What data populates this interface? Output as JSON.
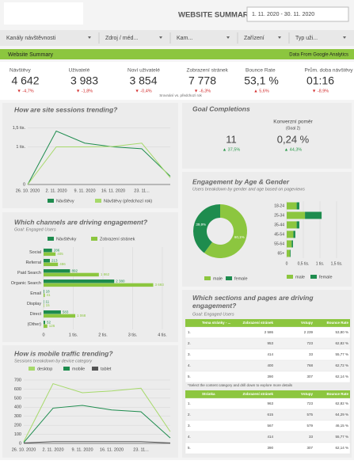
{
  "header": {
    "title": "WEBSITE SUMMARY OVERVIEW",
    "date_range": "1. 11. 2020 - 30. 11. 2020"
  },
  "filters": [
    "Kanály návštěvnosti",
    "Zdroj / méd...",
    "Kam...",
    "Zařízení",
    "Typ uži..."
  ],
  "banner": {
    "left": "Website Summary",
    "right": "Data From Google Analytics"
  },
  "kpis": [
    {
      "label": "Návštěvy",
      "value": "4 642",
      "change": "▼ -4,7%"
    },
    {
      "label": "Uživatelé",
      "value": "3 983",
      "change": "▼ -1,8%"
    },
    {
      "label": "Noví uživatelé",
      "value": "3 854",
      "change": "▼ -0,4%"
    },
    {
      "label": "Zobrazení stránek",
      "value": "7 778",
      "change": "▼ -6,3%"
    },
    {
      "label": "Bounce Rate",
      "value": "53,1 %",
      "change": "▲ 5,6%"
    },
    {
      "label": "Prům. doba návštěvy",
      "value": "01:16",
      "change": "▼ -8,9%"
    }
  ],
  "kpi_note": "Srovnání vs. předchozí rok",
  "goals": {
    "title": "Goal Completions",
    "count": "11",
    "count_change": "▲ 37,5%",
    "rate_label": "Konverzní poměr",
    "rate_sub": "(Goal 2)",
    "rate": "0,24 %",
    "rate_change": "▲ 44,3%"
  },
  "chart_data": [
    {
      "type": "line",
      "title": "How are site sessions trending?",
      "categories": [
        "26. 10. 2020",
        "2. 11. 2020",
        "9. 11. 2020",
        "16. 11. 2020",
        "23. 11...",
        null
      ],
      "ylim": [
        0,
        1600
      ],
      "yticks": [
        0,
        {
          "value": 1000,
          "label": "1 tis."
        },
        {
          "value": 1500,
          "label": "1,5 tis."
        }
      ],
      "series": [
        {
          "name": "Návštěvy",
          "color": "#1e8c4e",
          "values": [
            0,
            1420,
            1100,
            1000,
            950,
            220
          ]
        },
        {
          "name": "Návštěvy (předchozí rok)",
          "color": "#a6d96a",
          "values": [
            0,
            1000,
            1000,
            1010,
            1100,
            180
          ]
        }
      ]
    },
    {
      "type": "hbar",
      "title": "Which channels are driving engagement?",
      "subtitle": "Goal: Engaged Users",
      "categories": [
        "Social",
        "Referral",
        "Paid Search",
        "Organic Search",
        "Email",
        "Display",
        "Direct",
        "(Other)"
      ],
      "xlim": [
        0,
        4000
      ],
      "xticks": [
        0,
        {
          "value": 1000,
          "label": "1 tis."
        },
        {
          "value": 2000,
          "label": "2 tis."
        },
        {
          "value": 3000,
          "label": "3 tis."
        },
        {
          "value": 4000,
          "label": "4 tis."
        }
      ],
      "series": [
        {
          "name": "Návštěvky",
          "color": "#1e8c4e",
          "values": [
            286,
            213,
            892,
            2380,
            18,
            11,
            583,
            52
          ],
          "value_labels": [
            "286",
            "213",
            "892",
            "2 380",
            "18",
            "11",
            "583",
            "52"
          ]
        },
        {
          "name": "Zobrazení stránek",
          "color": "#8cc63f",
          "values": [
            405,
            486,
            1862,
            3693,
            41,
            15,
            1068,
            126
          ],
          "value_labels": [
            "405",
            "486",
            "1 862",
            "3 693",
            "41",
            "15",
            "1 068",
            "126"
          ]
        }
      ]
    },
    {
      "type": "line",
      "title": "How is mobile traffic trending?",
      "subtitle": "Sessions breakdown by device category",
      "categories": [
        "26. 10. 2020",
        "2. 11. 2020",
        "9. 11. 2020",
        "16. 11. 2020",
        "23. 11...",
        null
      ],
      "ylim": [
        0,
        700
      ],
      "yticks": [
        0,
        100,
        200,
        300,
        400,
        500,
        600,
        700
      ],
      "series": [
        {
          "name": "desktop",
          "color": "#a6d96a",
          "values": [
            20,
            660,
            560,
            580,
            610,
            130
          ]
        },
        {
          "name": "mobile",
          "color": "#1e8c4e",
          "values": [
            10,
            390,
            420,
            370,
            350,
            60
          ]
        },
        {
          "name": "tablet",
          "color": "#555555",
          "values": [
            5,
            20,
            20,
            20,
            20,
            5
          ]
        }
      ]
    },
    {
      "type": "pie",
      "title": "Engagement by Age & Gender",
      "subtitle": "Users breakdown by gender and age based on pageviews",
      "categories": [
        "male",
        "female"
      ],
      "values": [
        60.1,
        39.9
      ],
      "value_labels": [
        "60,1%",
        "39,9%"
      ],
      "colors": [
        "#8cc63f",
        "#1e8c4e"
      ]
    },
    {
      "type": "stacked_hbar",
      "categories": [
        "18-24",
        "25-34",
        "35-44",
        "45-54",
        "55-64",
        "65+"
      ],
      "xlim": [
        0,
        1500
      ],
      "xticks": [
        0,
        {
          "value": 500,
          "label": "0,5 tis."
        },
        {
          "value": 1000,
          "label": "1 tis."
        },
        {
          "value": 1500,
          "label": "1,5 tis."
        }
      ],
      "series": [
        {
          "name": "male",
          "color": "#8cc63f",
          "values": [
            300,
            550,
            300,
            200,
            150,
            100
          ]
        },
        {
          "name": "female",
          "color": "#1e8c4e",
          "values": [
            80,
            500,
            80,
            60,
            40,
            20
          ]
        }
      ]
    }
  ],
  "tables": {
    "title": "Which sections and pages are driving engagement?",
    "subtitle": "Goal: Engaged Users",
    "note": "*Select the content category and drill down to explore more details",
    "list": [
      {
        "columns": [
          "Tema stránky - ...",
          "Zobrazení stránek",
          "Vstupy",
          "Bounce Rate"
        ],
        "rows": [
          [
            "1.",
            "2 586",
            "2 239",
            "53,80 %"
          ],
          [
            "2.",
            "953",
            "723",
            "62,82 %"
          ],
          [
            "3.",
            "414",
            "33",
            "55,77 %"
          ],
          [
            "4.",
            "400",
            "768",
            "62,72 %"
          ],
          [
            "5.",
            "390",
            "307",
            "62,14 %"
          ]
        ]
      },
      {
        "columns": [
          "Stránka",
          "Zobrazení stránek",
          "Vstupy",
          "Bounce Rate"
        ],
        "rows": [
          [
            "1.",
            "963",
            "723",
            "62,82 %"
          ],
          [
            "2.",
            "615",
            "575",
            "64,29 %"
          ],
          [
            "3.",
            "567",
            "579",
            "46,15 %"
          ],
          [
            "4.",
            "414",
            "33",
            "55,77 %"
          ],
          [
            "5.",
            "390",
            "307",
            "62,14 %"
          ]
        ]
      }
    ]
  }
}
